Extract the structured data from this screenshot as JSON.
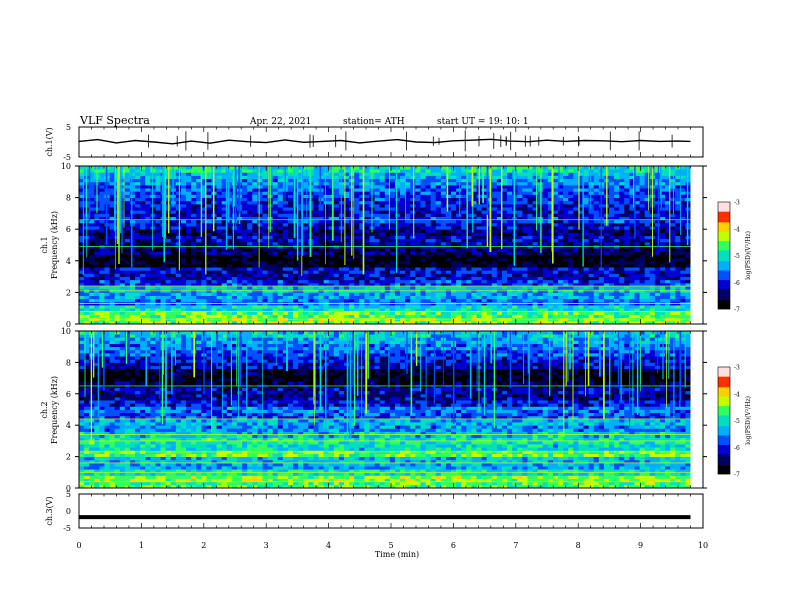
{
  "header": {
    "title": "VLF  Spectra",
    "date": "Apr. 22, 2021",
    "station": "station= ATH",
    "start": "start  UT  =   19: 10: 1"
  },
  "chart_data": [
    {
      "type": "line",
      "name": "ch1-waveform",
      "ylabel": "ch.1(V)",
      "ylim": [
        -5,
        5
      ],
      "yticks": [
        "5",
        "-5"
      ],
      "x": [
        0.0,
        0.3,
        0.6,
        0.9,
        1.2,
        1.5,
        1.8,
        2.1,
        2.4,
        2.7,
        3.0,
        3.3,
        3.6,
        3.9,
        4.2,
        4.5,
        4.8,
        5.1,
        5.4,
        5.7,
        6.0,
        6.3,
        6.6,
        6.9,
        7.2,
        7.5,
        7.8,
        8.1,
        8.4,
        8.7,
        9.0,
        9.3,
        9.6,
        9.8
      ],
      "y": [
        0.2,
        0.8,
        -0.3,
        0.5,
        0.0,
        -0.6,
        0.3,
        -0.4,
        0.6,
        0.1,
        -0.2,
        0.7,
        -0.1,
        0.2,
        0.5,
        -0.3,
        0.3,
        0.8,
        0.0,
        -0.2,
        0.4,
        0.6,
        0.9,
        0.3,
        0.1,
        0.6,
        0.2,
        0.5,
        0.4,
        0.1,
        0.5,
        0.2,
        0.3,
        0.2
      ]
    },
    {
      "type": "heatmap",
      "name": "ch1-spectrogram",
      "ylabel": "ch.1\nFrequency (kHz)",
      "ylim": [
        0,
        10
      ],
      "yticks": [
        "0",
        "2",
        "4",
        "6",
        "8",
        "10"
      ],
      "xlim": [
        0,
        10
      ],
      "freq_khz": [
        0.2,
        0.6,
        1.0,
        1.4,
        1.8,
        2.2,
        2.6,
        3.0,
        3.4,
        3.8,
        4.2,
        4.6,
        5.0,
        5.4,
        5.8,
        6.2,
        6.6,
        7.0,
        7.4,
        7.8,
        8.2,
        8.6,
        9.0,
        9.4,
        9.8
      ],
      "log_psd_by_frequency": [
        -4.4,
        -4.6,
        -5.1,
        -5.6,
        -5.4,
        -5.3,
        -5.9,
        -6.2,
        -6.1,
        -6.8,
        -6.9,
        -6.5,
        -6.3,
        -6.2,
        -6.4,
        -6.1,
        -5.9,
        -6.1,
        -6.0,
        -5.9,
        -5.8,
        -5.7,
        -5.5,
        -5.3,
        -5.0
      ]
    },
    {
      "type": "heatmap",
      "name": "ch2-spectrogram",
      "ylabel": "ch.2\nFrequency (kHz)",
      "ylim": [
        0,
        10
      ],
      "yticks": [
        "0",
        "2",
        "4",
        "6",
        "8",
        "10"
      ],
      "xlim": [
        0,
        10
      ],
      "freq_khz": [
        0.2,
        0.6,
        1.0,
        1.4,
        1.8,
        2.2,
        2.6,
        3.0,
        3.4,
        3.8,
        4.2,
        4.6,
        5.0,
        5.4,
        5.8,
        6.2,
        6.6,
        7.0,
        7.4,
        7.8,
        8.2,
        8.6,
        9.0,
        9.4,
        9.8
      ],
      "log_psd_by_frequency": [
        -4.6,
        -4.4,
        -5.0,
        -5.4,
        -5.3,
        -4.6,
        -5.1,
        -4.9,
        -5.2,
        -5.5,
        -5.3,
        -5.8,
        -5.6,
        -6.0,
        -6.3,
        -6.2,
        -6.6,
        -6.8,
        -6.7,
        -6.2,
        -6.0,
        -5.8,
        -5.6,
        -5.4,
        -5.2
      ]
    },
    {
      "type": "line",
      "name": "ch3-waveform",
      "ylabel": "ch.3(V)",
      "ylim": [
        -5,
        5
      ],
      "yticks": [
        "5",
        "0",
        "-5"
      ],
      "x": [
        0.0,
        9.8
      ],
      "y": [
        -1.8,
        -1.8
      ]
    }
  ],
  "xaxis": {
    "label": "Time  (min)",
    "ticks": [
      "0",
      "1",
      "2",
      "3",
      "4",
      "5",
      "6",
      "7",
      "8",
      "9",
      "10"
    ],
    "xlim": [
      0,
      10
    ]
  },
  "colorbar": {
    "label": "log(PSD)(V²/Hz)",
    "range": [
      -7,
      -3
    ],
    "ticks": [
      "-3",
      "-4",
      "-5",
      "-6",
      "-7"
    ]
  },
  "colors": {
    "c0": "#000000",
    "c1": "#000060",
    "c2": "#0000d0",
    "c3": "#0050ff",
    "c4": "#00b0ff",
    "c5": "#00e0c0",
    "c6": "#30ff60",
    "c7": "#c0ff00",
    "c8": "#ffd000",
    "c9": "#ff3000",
    "c10": "#ffe0e0"
  }
}
